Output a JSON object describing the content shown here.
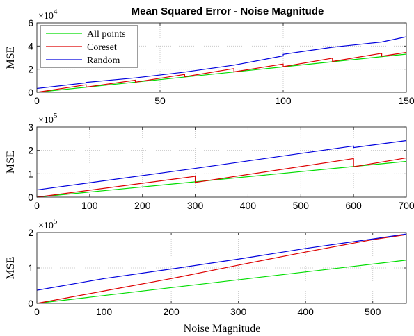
{
  "chart_data": [
    {
      "type": "line",
      "title": "Mean Squared Error - Noise Magnitude",
      "xlabel": "",
      "ylabel": "MSE",
      "xlim": [
        0,
        150
      ],
      "ylim": [
        0,
        60000
      ],
      "exponent": "4",
      "xticks": [
        "0",
        "50",
        "100",
        "150"
      ],
      "yticks": [
        "0",
        "2",
        "4",
        "6"
      ],
      "grid": true,
      "legend": {
        "placement": "top-left",
        "entries": [
          "All points",
          "Coreset",
          "Random"
        ]
      },
      "series": [
        {
          "name": "All points",
          "color": "#00dd00",
          "points": [
            [
              0,
              0
            ],
            [
              150,
              33000
            ]
          ]
        },
        {
          "name": "Coreset",
          "color": "#dd0000",
          "points": [
            [
              0,
              0
            ],
            [
              20,
              6500
            ],
            [
              20,
              4500
            ],
            [
              40,
              10500
            ],
            [
              40,
              8800
            ],
            [
              60,
              15500
            ],
            [
              60,
              13500
            ],
            [
              80,
              20500
            ],
            [
              80,
              17700
            ],
            [
              100,
              24500
            ],
            [
              100,
              22200
            ],
            [
              120,
              29500
            ],
            [
              120,
              26700
            ],
            [
              140,
              33700
            ],
            [
              140,
              31200
            ],
            [
              150,
              34500
            ]
          ]
        },
        {
          "name": "Random",
          "color": "#0000dd",
          "points": [
            [
              0,
              3300
            ],
            [
              20,
              8200
            ],
            [
              20,
              8600
            ],
            [
              40,
              12500
            ],
            [
              60,
              17500
            ],
            [
              80,
              23500
            ],
            [
              100,
              31500
            ],
            [
              100,
              32800
            ],
            [
              120,
              39000
            ],
            [
              140,
              43500
            ],
            [
              150,
              48000
            ]
          ]
        }
      ]
    },
    {
      "type": "line",
      "title": "",
      "xlabel": "",
      "ylabel": "MSE",
      "xlim": [
        0,
        700
      ],
      "ylim": [
        0,
        300000
      ],
      "exponent": "5",
      "xticks": [
        "0",
        "100",
        "200",
        "300",
        "400",
        "500",
        "600",
        "700"
      ],
      "yticks": [
        "0",
        "1",
        "2",
        "3"
      ],
      "grid": true,
      "series": [
        {
          "name": "All points",
          "color": "#00dd00",
          "points": [
            [
              0,
              0
            ],
            [
              700,
              153000
            ]
          ]
        },
        {
          "name": "Coreset",
          "color": "#dd0000",
          "points": [
            [
              0,
              0
            ],
            [
              300,
              89000
            ],
            [
              300,
              63000
            ],
            [
              600,
              165000
            ],
            [
              600,
              130000
            ],
            [
              700,
              168000
            ]
          ]
        },
        {
          "name": "Random",
          "color": "#0000dd",
          "points": [
            [
              0,
              31000
            ],
            [
              300,
              123000
            ],
            [
              600,
              219000
            ],
            [
              600,
              212000
            ],
            [
              700,
              242000
            ]
          ]
        }
      ]
    },
    {
      "type": "line",
      "title": "",
      "xlabel": "Noise Magnitude",
      "ylabel": "MSE",
      "xlim": [
        0,
        550
      ],
      "ylim": [
        0,
        200000
      ],
      "exponent": "5",
      "xticks": [
        "0",
        "100",
        "200",
        "300",
        "400",
        "500"
      ],
      "yticks": [
        "0",
        "1",
        "2"
      ],
      "grid": true,
      "series": [
        {
          "name": "All points",
          "color": "#00dd00",
          "points": [
            [
              0,
              0
            ],
            [
              550,
              122000
            ]
          ]
        },
        {
          "name": "Coreset",
          "color": "#dd0000",
          "points": [
            [
              0,
              0
            ],
            [
              100,
              35000
            ],
            [
              200,
              70000
            ],
            [
              300,
              108000
            ],
            [
              400,
              145000
            ],
            [
              500,
              180000
            ],
            [
              550,
              194000
            ]
          ]
        },
        {
          "name": "Random",
          "color": "#0000dd",
          "points": [
            [
              0,
              37000
            ],
            [
              100,
              70000
            ],
            [
              200,
              97000
            ],
            [
              300,
              125000
            ],
            [
              400,
              155000
            ],
            [
              500,
              182000
            ],
            [
              550,
              196000
            ]
          ]
        }
      ]
    }
  ]
}
